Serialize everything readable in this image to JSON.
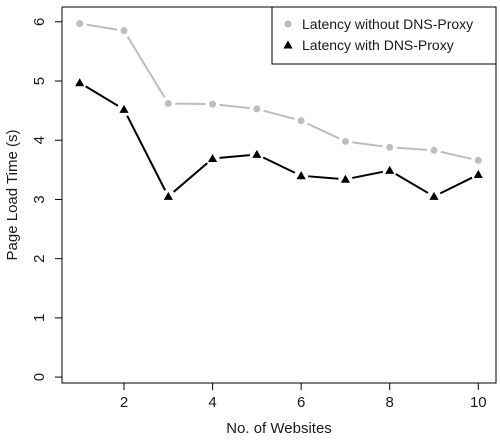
{
  "chart_data": {
    "type": "line",
    "title": "",
    "xlabel": "No. of Websites",
    "ylabel": "Page Load Time (s)",
    "xlim": [
      0.6,
      10.4
    ],
    "ylim": [
      -0.1,
      6.25
    ],
    "x_ticks": [
      2,
      4,
      6,
      8,
      10
    ],
    "y_ticks": [
      0,
      1,
      2,
      3,
      4,
      5,
      6
    ],
    "grid": false,
    "legend_position": "top-right",
    "x": [
      1,
      2,
      3,
      4,
      5,
      6,
      7,
      8,
      9,
      10
    ],
    "series": [
      {
        "name": "Latency without DNS-Proxy",
        "color": "#bdbdbd",
        "marker": "circle",
        "values": [
          5.97,
          5.85,
          4.62,
          4.61,
          4.53,
          4.33,
          3.98,
          3.88,
          3.83,
          3.66
        ]
      },
      {
        "name": "Latency with DNS-Proxy",
        "color": "#000000",
        "marker": "triangle",
        "values": [
          4.97,
          4.52,
          3.05,
          3.69,
          3.76,
          3.4,
          3.34,
          3.49,
          3.05,
          3.42
        ]
      }
    ]
  }
}
